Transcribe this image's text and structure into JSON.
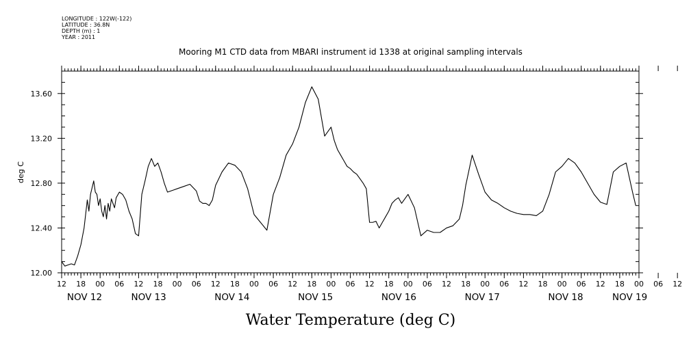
{
  "header": {
    "meta_lines": [
      "LONGITUDE : 122W(-122)",
      "LATITUDE : 36.8N",
      "DEPTH (m) : 1",
      "YEAR : 2011"
    ]
  },
  "chart_data": {
    "type": "line",
    "title": "Mooring M1 CTD data from MBARI instrument id 1338 at original sampling intervals",
    "xlabel": "Water Temperature (deg C)",
    "ylabel": "deg C",
    "ylim": [
      12.0,
      13.8
    ],
    "yticks": [
      "12.00",
      "12.40",
      "12.80",
      "13.20",
      "13.60"
    ],
    "ytick_values": [
      12.0,
      12.4,
      12.8,
      13.2,
      13.6
    ],
    "xlim_hours": [
      12,
      192
    ],
    "hour_tick_labels": [
      "12",
      "18",
      "00",
      "06",
      "12",
      "18",
      "00",
      "06",
      "12",
      "18",
      "00",
      "06",
      "12",
      "18",
      "00",
      "06",
      "12",
      "18",
      "00",
      "06",
      "12",
      "18",
      "00",
      "06",
      "12",
      "18",
      "00",
      "06",
      "12",
      "18",
      "00",
      "06",
      "12"
    ],
    "date_labels": [
      "NOV 12",
      "NOV 13",
      "NOV 14",
      "NOV 15",
      "NOV 16",
      "NOV 17",
      "NOV 18",
      "NOV 19"
    ],
    "grid": false,
    "series": [
      {
        "color": "#000000",
        "x": [
          12.0,
          13.0,
          14.0,
          15.0,
          16.0,
          17.0,
          18.0,
          19.0,
          20.0,
          20.5,
          21.0,
          21.5,
          22.0,
          22.5,
          23.0,
          23.5,
          24.0,
          24.5,
          25.0,
          25.5,
          26.0,
          26.5,
          27.0,
          27.5,
          28.0,
          28.5,
          29.0,
          30.0,
          31.0,
          32.0,
          33.0,
          34.0,
          35.0,
          36.0,
          37.0,
          38.0,
          39.0,
          40.0,
          41.0,
          42.0,
          43.0,
          44.0,
          45.0,
          46.0,
          47.0,
          48.0,
          50.0,
          52.0,
          54.0,
          55.0,
          56.0,
          57.0,
          58.0,
          59.0,
          60.0,
          62.0,
          64.0,
          66.0,
          68.0,
          70.0,
          72.0,
          74.0,
          76.0,
          78.0,
          80.0,
          82.0,
          84.0,
          86.0,
          88.0,
          90.0,
          92.0,
          94.0,
          96.0,
          97.0,
          98.0,
          99.0,
          100.0,
          101.0,
          102.0,
          103.0,
          104.0,
          105.0,
          106.0,
          107.0,
          108.0,
          109.0,
          110.0,
          111.0,
          112.0,
          113.0,
          114.0,
          115.0,
          116.0,
          117.0,
          118.0,
          120.0,
          122.0,
          124.0,
          126.0,
          128.0,
          130.0,
          132.0,
          134.0,
          136.0,
          137.0,
          138.0,
          140.0,
          142.0,
          144.0,
          146.0,
          148.0,
          150.0,
          152.0,
          154.0,
          156.0,
          158.0,
          160.0,
          162.0,
          164.0,
          166.0,
          168.0,
          170.0,
          172.0,
          174.0,
          176.0,
          178.0,
          180.0,
          182.0,
          184.0,
          186.0,
          188.0,
          190.0,
          191.0
        ],
        "values": [
          12.1,
          12.06,
          12.07,
          12.08,
          12.07,
          12.15,
          12.25,
          12.4,
          12.65,
          12.55,
          12.7,
          12.76,
          12.82,
          12.72,
          12.7,
          12.6,
          12.66,
          12.55,
          12.5,
          12.6,
          12.48,
          12.62,
          12.55,
          12.66,
          12.62,
          12.58,
          12.67,
          12.72,
          12.7,
          12.65,
          12.55,
          12.48,
          12.35,
          12.33,
          12.7,
          12.82,
          12.95,
          13.02,
          12.95,
          12.98,
          12.9,
          12.8,
          12.72,
          12.73,
          12.74,
          12.75,
          12.77,
          12.79,
          12.73,
          12.64,
          12.62,
          12.62,
          12.6,
          12.65,
          12.78,
          12.9,
          12.98,
          12.96,
          12.9,
          12.75,
          12.52,
          12.45,
          12.38,
          12.7,
          12.85,
          13.05,
          13.15,
          13.3,
          13.52,
          13.66,
          13.55,
          13.22,
          13.3,
          13.18,
          13.1,
          13.05,
          13.0,
          12.95,
          12.93,
          12.9,
          12.88,
          12.84,
          12.8,
          12.75,
          12.45,
          12.45,
          12.46,
          12.4,
          12.45,
          12.5,
          12.55,
          12.62,
          12.65,
          12.67,
          12.62,
          12.7,
          12.58,
          12.33,
          12.38,
          12.36,
          12.36,
          12.4,
          12.42,
          12.48,
          12.6,
          12.78,
          13.05,
          12.88,
          12.72,
          12.65,
          12.62,
          12.58,
          12.55,
          12.53,
          12.52,
          12.52,
          12.51,
          12.55,
          12.7,
          12.9,
          12.95,
          13.02,
          12.98,
          12.9,
          12.8,
          12.7,
          12.63,
          12.61,
          12.9,
          12.95,
          12.98,
          12.72,
          12.6
        ]
      }
    ]
  }
}
